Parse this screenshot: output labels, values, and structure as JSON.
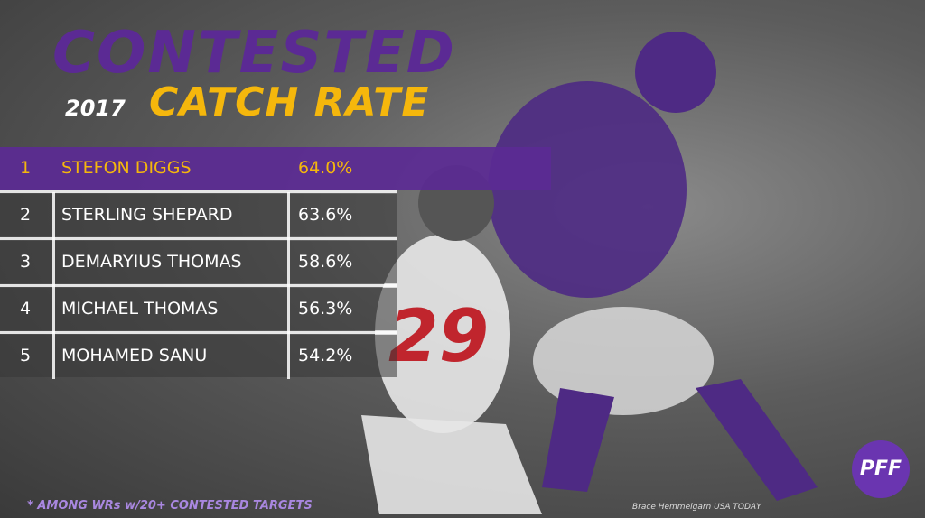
{
  "header": {
    "title": "CONTESTED",
    "year": "2017",
    "subtitle": "CATCH RATE"
  },
  "table": {
    "rows": [
      [
        "1",
        "STEFON DIGGS",
        "64.0%"
      ],
      [
        "2",
        "STERLING SHEPARD",
        "63.6%"
      ],
      [
        "3",
        "DEMARYIUS THOMAS",
        "58.6%"
      ],
      [
        "4",
        "MICHAEL THOMAS",
        "56.3%"
      ],
      [
        "5",
        "MOHAMED SANU",
        "54.2%"
      ]
    ]
  },
  "footnote": "* AMONG WRs w/20+ CONTESTED TARGETS",
  "credit": "Brace Hemmelgarn USA TODAY",
  "logo": "PFF"
}
